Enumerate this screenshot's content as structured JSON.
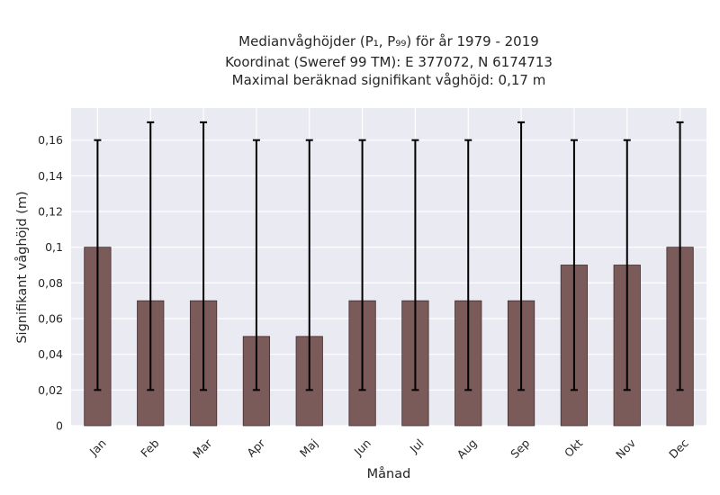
{
  "chart_data": {
    "type": "bar",
    "title_lines": [
      "Medianvåghöjder (P₁, P₉₉) för år 1979 - 2019",
      "Koordinat (Sweref 99 TM): E 377072, N 6174713",
      "Maximal beräknad signifikant våghöjd: 0,17 m"
    ],
    "xlabel": "Månad",
    "ylabel": "Signifikant våghöjd (m)",
    "categories": [
      "Jan",
      "Feb",
      "Mar",
      "Apr",
      "Maj",
      "Jun",
      "Jul",
      "Aug",
      "Sep",
      "Okt",
      "Nov",
      "Dec"
    ],
    "values": [
      0.1,
      0.07,
      0.07,
      0.05,
      0.05,
      0.07,
      0.07,
      0.07,
      0.07,
      0.09,
      0.09,
      0.1
    ],
    "error_low": [
      0.02,
      0.02,
      0.02,
      0.02,
      0.02,
      0.02,
      0.02,
      0.02,
      0.02,
      0.02,
      0.02,
      0.02
    ],
    "error_high": [
      0.16,
      0.17,
      0.17,
      0.16,
      0.16,
      0.16,
      0.16,
      0.16,
      0.17,
      0.16,
      0.16,
      0.17
    ],
    "ylim": [
      0,
      0.178
    ],
    "yticks": [
      0,
      0.02,
      0.04,
      0.06,
      0.08,
      0.1,
      0.12,
      0.14,
      0.16
    ],
    "ytick_labels": [
      "0",
      "0,02",
      "0,04",
      "0,06",
      "0,08",
      "0,1",
      "0,12",
      "0,14",
      "0,16"
    ],
    "grid": true,
    "colors": {
      "bar": "#7b5a5a",
      "bar_edge": "#3e2c2c",
      "error": "#000000",
      "background": "#eaeaf2",
      "grid": "#ffffff"
    }
  }
}
